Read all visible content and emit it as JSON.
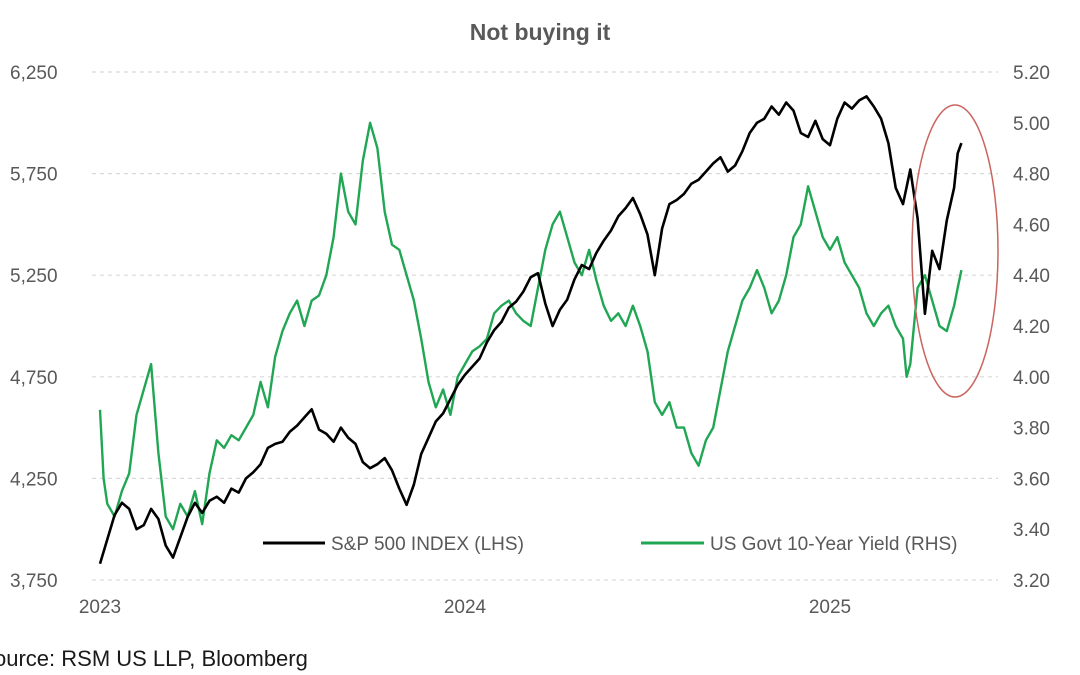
{
  "chart_data": {
    "type": "line",
    "title": "Not buying it",
    "source": "ource: RSM US LLP, Bloomberg",
    "colors": {
      "sp500": "#000000",
      "yield": "#21a654",
      "grid": "#d9d9d9",
      "annotation_circle": "#c9665f"
    },
    "y_left": {
      "ticks": [
        "3,750",
        "4,250",
        "4,750",
        "5,250",
        "5,750",
        "6,250"
      ],
      "ylim": [
        3750,
        6250
      ]
    },
    "y_right": {
      "ticks": [
        "3.20",
        "3.40",
        "3.60",
        "3.80",
        "4.00",
        "4.20",
        "4.40",
        "4.60",
        "4.80",
        "5.00",
        "5.20"
      ],
      "ylim": [
        3.2,
        5.2
      ]
    },
    "x_ticks": [
      "2023",
      "2024",
      "2025"
    ],
    "xlim": [
      2023.0,
      2025.37
    ],
    "grid": "horizontal dashed",
    "legend_position": "bottom-right inside plot",
    "annotation": "red ellipse around April-May 2025",
    "series": [
      {
        "name": "S&P 500 INDEX (LHS)",
        "axis": "left",
        "color": "#000000",
        "points": [
          [
            2023.0,
            3830
          ],
          [
            2023.02,
            3950
          ],
          [
            2023.04,
            4070
          ],
          [
            2023.06,
            4130
          ],
          [
            2023.08,
            4100
          ],
          [
            2023.1,
            4000
          ],
          [
            2023.12,
            4020
          ],
          [
            2023.14,
            4100
          ],
          [
            2023.16,
            4050
          ],
          [
            2023.18,
            3920
          ],
          [
            2023.2,
            3860
          ],
          [
            2023.22,
            3960
          ],
          [
            2023.24,
            4060
          ],
          [
            2023.26,
            4130
          ],
          [
            2023.28,
            4080
          ],
          [
            2023.3,
            4140
          ],
          [
            2023.32,
            4160
          ],
          [
            2023.34,
            4130
          ],
          [
            2023.36,
            4200
          ],
          [
            2023.38,
            4180
          ],
          [
            2023.4,
            4250
          ],
          [
            2023.42,
            4280
          ],
          [
            2023.44,
            4320
          ],
          [
            2023.46,
            4400
          ],
          [
            2023.48,
            4420
          ],
          [
            2023.5,
            4430
          ],
          [
            2023.52,
            4480
          ],
          [
            2023.54,
            4510
          ],
          [
            2023.56,
            4550
          ],
          [
            2023.58,
            4590
          ],
          [
            2023.6,
            4490
          ],
          [
            2023.62,
            4470
          ],
          [
            2023.64,
            4430
          ],
          [
            2023.66,
            4500
          ],
          [
            2023.68,
            4450
          ],
          [
            2023.7,
            4420
          ],
          [
            2023.72,
            4330
          ],
          [
            2023.74,
            4300
          ],
          [
            2023.76,
            4320
          ],
          [
            2023.78,
            4350
          ],
          [
            2023.8,
            4290
          ],
          [
            2023.82,
            4200
          ],
          [
            2023.84,
            4120
          ],
          [
            2023.86,
            4220
          ],
          [
            2023.88,
            4370
          ],
          [
            2023.9,
            4450
          ],
          [
            2023.92,
            4530
          ],
          [
            2023.94,
            4570
          ],
          [
            2023.96,
            4640
          ],
          [
            2023.98,
            4710
          ],
          [
            2024.0,
            4760
          ],
          [
            2024.02,
            4800
          ],
          [
            2024.04,
            4840
          ],
          [
            2024.06,
            4920
          ],
          [
            2024.08,
            4980
          ],
          [
            2024.1,
            5020
          ],
          [
            2024.12,
            5090
          ],
          [
            2024.14,
            5120
          ],
          [
            2024.16,
            5170
          ],
          [
            2024.18,
            5240
          ],
          [
            2024.2,
            5260
          ],
          [
            2024.22,
            5110
          ],
          [
            2024.24,
            5000
          ],
          [
            2024.26,
            5080
          ],
          [
            2024.28,
            5130
          ],
          [
            2024.3,
            5230
          ],
          [
            2024.32,
            5300
          ],
          [
            2024.34,
            5280
          ],
          [
            2024.36,
            5360
          ],
          [
            2024.38,
            5420
          ],
          [
            2024.4,
            5470
          ],
          [
            2024.42,
            5540
          ],
          [
            2024.44,
            5580
          ],
          [
            2024.46,
            5630
          ],
          [
            2024.48,
            5550
          ],
          [
            2024.5,
            5450
          ],
          [
            2024.52,
            5250
          ],
          [
            2024.54,
            5480
          ],
          [
            2024.56,
            5600
          ],
          [
            2024.58,
            5620
          ],
          [
            2024.6,
            5650
          ],
          [
            2024.62,
            5700
          ],
          [
            2024.64,
            5720
          ],
          [
            2024.66,
            5760
          ],
          [
            2024.68,
            5800
          ],
          [
            2024.7,
            5830
          ],
          [
            2024.72,
            5760
          ],
          [
            2024.74,
            5790
          ],
          [
            2024.76,
            5860
          ],
          [
            2024.78,
            5950
          ],
          [
            2024.8,
            6000
          ],
          [
            2024.82,
            6020
          ],
          [
            2024.84,
            6080
          ],
          [
            2024.86,
            6040
          ],
          [
            2024.88,
            6100
          ],
          [
            2024.9,
            6060
          ],
          [
            2024.92,
            5950
          ],
          [
            2024.94,
            5930
          ],
          [
            2024.96,
            6010
          ],
          [
            2024.98,
            5920
          ],
          [
            2025.0,
            5890
          ],
          [
            2025.02,
            6020
          ],
          [
            2025.04,
            6100
          ],
          [
            2025.06,
            6070
          ],
          [
            2025.08,
            6110
          ],
          [
            2025.1,
            6130
          ],
          [
            2025.12,
            6080
          ],
          [
            2025.14,
            6020
          ],
          [
            2025.16,
            5900
          ],
          [
            2025.18,
            5680
          ],
          [
            2025.2,
            5600
          ],
          [
            2025.22,
            5770
          ],
          [
            2025.24,
            5530
          ],
          [
            2025.26,
            5060
          ],
          [
            2025.28,
            5370
          ],
          [
            2025.3,
            5280
          ],
          [
            2025.32,
            5520
          ],
          [
            2025.34,
            5680
          ],
          [
            2025.35,
            5850
          ],
          [
            2025.36,
            5900
          ]
        ]
      },
      {
        "name": "US Govt 10-Year Yield (RHS)",
        "axis": "right",
        "color": "#21a654",
        "points": [
          [
            2023.0,
            3.87
          ],
          [
            2023.01,
            3.6
          ],
          [
            2023.02,
            3.5
          ],
          [
            2023.04,
            3.45
          ],
          [
            2023.06,
            3.55
          ],
          [
            2023.08,
            3.62
          ],
          [
            2023.1,
            3.85
          ],
          [
            2023.12,
            3.95
          ],
          [
            2023.14,
            4.05
          ],
          [
            2023.16,
            3.7
          ],
          [
            2023.18,
            3.45
          ],
          [
            2023.2,
            3.4
          ],
          [
            2023.22,
            3.5
          ],
          [
            2023.24,
            3.45
          ],
          [
            2023.26,
            3.55
          ],
          [
            2023.28,
            3.42
          ],
          [
            2023.3,
            3.62
          ],
          [
            2023.32,
            3.75
          ],
          [
            2023.34,
            3.72
          ],
          [
            2023.36,
            3.77
          ],
          [
            2023.38,
            3.75
          ],
          [
            2023.4,
            3.8
          ],
          [
            2023.42,
            3.85
          ],
          [
            2023.44,
            3.98
          ],
          [
            2023.46,
            3.88
          ],
          [
            2023.48,
            4.08
          ],
          [
            2023.5,
            4.18
          ],
          [
            2023.52,
            4.25
          ],
          [
            2023.54,
            4.3
          ],
          [
            2023.56,
            4.2
          ],
          [
            2023.58,
            4.3
          ],
          [
            2023.6,
            4.32
          ],
          [
            2023.62,
            4.4
          ],
          [
            2023.64,
            4.55
          ],
          [
            2023.66,
            4.8
          ],
          [
            2023.68,
            4.65
          ],
          [
            2023.7,
            4.6
          ],
          [
            2023.72,
            4.85
          ],
          [
            2023.74,
            5.0
          ],
          [
            2023.76,
            4.9
          ],
          [
            2023.78,
            4.65
          ],
          [
            2023.8,
            4.52
          ],
          [
            2023.82,
            4.5
          ],
          [
            2023.84,
            4.4
          ],
          [
            2023.86,
            4.3
          ],
          [
            2023.88,
            4.15
          ],
          [
            2023.9,
            3.98
          ],
          [
            2023.92,
            3.88
          ],
          [
            2023.94,
            3.95
          ],
          [
            2023.96,
            3.85
          ],
          [
            2023.98,
            4.0
          ],
          [
            2024.0,
            4.05
          ],
          [
            2024.02,
            4.1
          ],
          [
            2024.04,
            4.12
          ],
          [
            2024.06,
            4.15
          ],
          [
            2024.08,
            4.25
          ],
          [
            2024.1,
            4.28
          ],
          [
            2024.12,
            4.3
          ],
          [
            2024.14,
            4.25
          ],
          [
            2024.16,
            4.22
          ],
          [
            2024.18,
            4.2
          ],
          [
            2024.2,
            4.35
          ],
          [
            2024.22,
            4.5
          ],
          [
            2024.24,
            4.6
          ],
          [
            2024.26,
            4.65
          ],
          [
            2024.28,
            4.55
          ],
          [
            2024.3,
            4.45
          ],
          [
            2024.32,
            4.4
          ],
          [
            2024.34,
            4.5
          ],
          [
            2024.36,
            4.38
          ],
          [
            2024.38,
            4.28
          ],
          [
            2024.4,
            4.22
          ],
          [
            2024.42,
            4.25
          ],
          [
            2024.44,
            4.2
          ],
          [
            2024.46,
            4.28
          ],
          [
            2024.48,
            4.2
          ],
          [
            2024.5,
            4.1
          ],
          [
            2024.52,
            3.9
          ],
          [
            2024.54,
            3.85
          ],
          [
            2024.56,
            3.9
          ],
          [
            2024.58,
            3.8
          ],
          [
            2024.6,
            3.8
          ],
          [
            2024.62,
            3.7
          ],
          [
            2024.64,
            3.65
          ],
          [
            2024.66,
            3.75
          ],
          [
            2024.68,
            3.8
          ],
          [
            2024.7,
            3.95
          ],
          [
            2024.72,
            4.1
          ],
          [
            2024.74,
            4.2
          ],
          [
            2024.76,
            4.3
          ],
          [
            2024.78,
            4.35
          ],
          [
            2024.8,
            4.42
          ],
          [
            2024.82,
            4.35
          ],
          [
            2024.84,
            4.25
          ],
          [
            2024.86,
            4.3
          ],
          [
            2024.88,
            4.4
          ],
          [
            2024.9,
            4.55
          ],
          [
            2024.92,
            4.6
          ],
          [
            2024.94,
            4.75
          ],
          [
            2024.96,
            4.65
          ],
          [
            2024.98,
            4.55
          ],
          [
            2025.0,
            4.5
          ],
          [
            2025.02,
            4.55
          ],
          [
            2025.04,
            4.45
          ],
          [
            2025.06,
            4.4
          ],
          [
            2025.08,
            4.35
          ],
          [
            2025.1,
            4.25
          ],
          [
            2025.12,
            4.2
          ],
          [
            2025.14,
            4.25
          ],
          [
            2025.16,
            4.28
          ],
          [
            2025.18,
            4.2
          ],
          [
            2025.2,
            4.15
          ],
          [
            2025.21,
            4.0
          ],
          [
            2025.22,
            4.05
          ],
          [
            2025.24,
            4.35
          ],
          [
            2025.26,
            4.4
          ],
          [
            2025.28,
            4.3
          ],
          [
            2025.3,
            4.2
          ],
          [
            2025.32,
            4.18
          ],
          [
            2025.34,
            4.28
          ],
          [
            2025.35,
            4.35
          ],
          [
            2025.36,
            4.42
          ]
        ]
      }
    ]
  }
}
